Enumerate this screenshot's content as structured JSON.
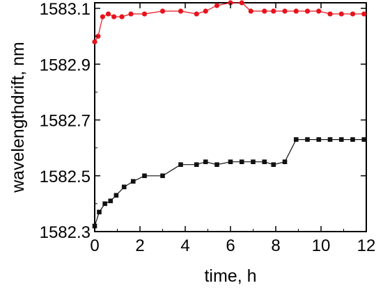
{
  "chart_data": {
    "type": "line",
    "title": "",
    "xlabel": "time, h",
    "ylabel": "wavelengthdrift, nm",
    "xlim": [
      0,
      12
    ],
    "ylim": [
      1582.3,
      1583.12
    ],
    "x_ticks": [
      "0",
      "2",
      "4",
      "6",
      "8",
      "10",
      "12"
    ],
    "y_ticks": [
      "1582.3",
      "1582.5",
      "1582.7",
      "1582.9",
      "1583.1"
    ],
    "grid": false,
    "legend": "none",
    "series": [
      {
        "color": "#e8121c",
        "marker": "circle",
        "x": [
          0,
          0.15,
          0.35,
          0.6,
          0.85,
          1.2,
          1.6,
          2.2,
          3.0,
          3.8,
          4.5,
          4.9,
          5.4,
          6.0,
          6.5,
          6.9,
          7.5,
          7.9,
          8.4,
          8.9,
          9.4,
          9.9,
          10.4,
          10.9,
          11.4,
          11.9
        ],
        "y": [
          1582.98,
          1583.0,
          1583.07,
          1583.08,
          1583.07,
          1583.07,
          1583.08,
          1583.08,
          1583.09,
          1583.09,
          1583.08,
          1583.09,
          1583.11,
          1583.12,
          1583.12,
          1583.09,
          1583.09,
          1583.09,
          1583.09,
          1583.09,
          1583.09,
          1583.09,
          1583.08,
          1583.08,
          1583.08,
          1583.08
        ]
      },
      {
        "color": "#111111",
        "marker": "square",
        "x": [
          0,
          0.2,
          0.45,
          0.7,
          0.95,
          1.3,
          1.7,
          2.2,
          3.0,
          3.8,
          4.5,
          4.9,
          5.4,
          6.0,
          6.5,
          7.0,
          7.5,
          7.9,
          8.4,
          8.9,
          9.4,
          9.9,
          10.4,
          10.9,
          11.4,
          11.9
        ],
        "y": [
          1582.32,
          1582.37,
          1582.4,
          1582.41,
          1582.43,
          1582.46,
          1582.48,
          1582.5,
          1582.5,
          1582.54,
          1582.54,
          1582.55,
          1582.54,
          1582.55,
          1582.55,
          1582.55,
          1582.55,
          1582.54,
          1582.55,
          1582.63,
          1582.63,
          1582.63,
          1582.63,
          1582.63,
          1582.63,
          1582.63
        ]
      }
    ]
  }
}
